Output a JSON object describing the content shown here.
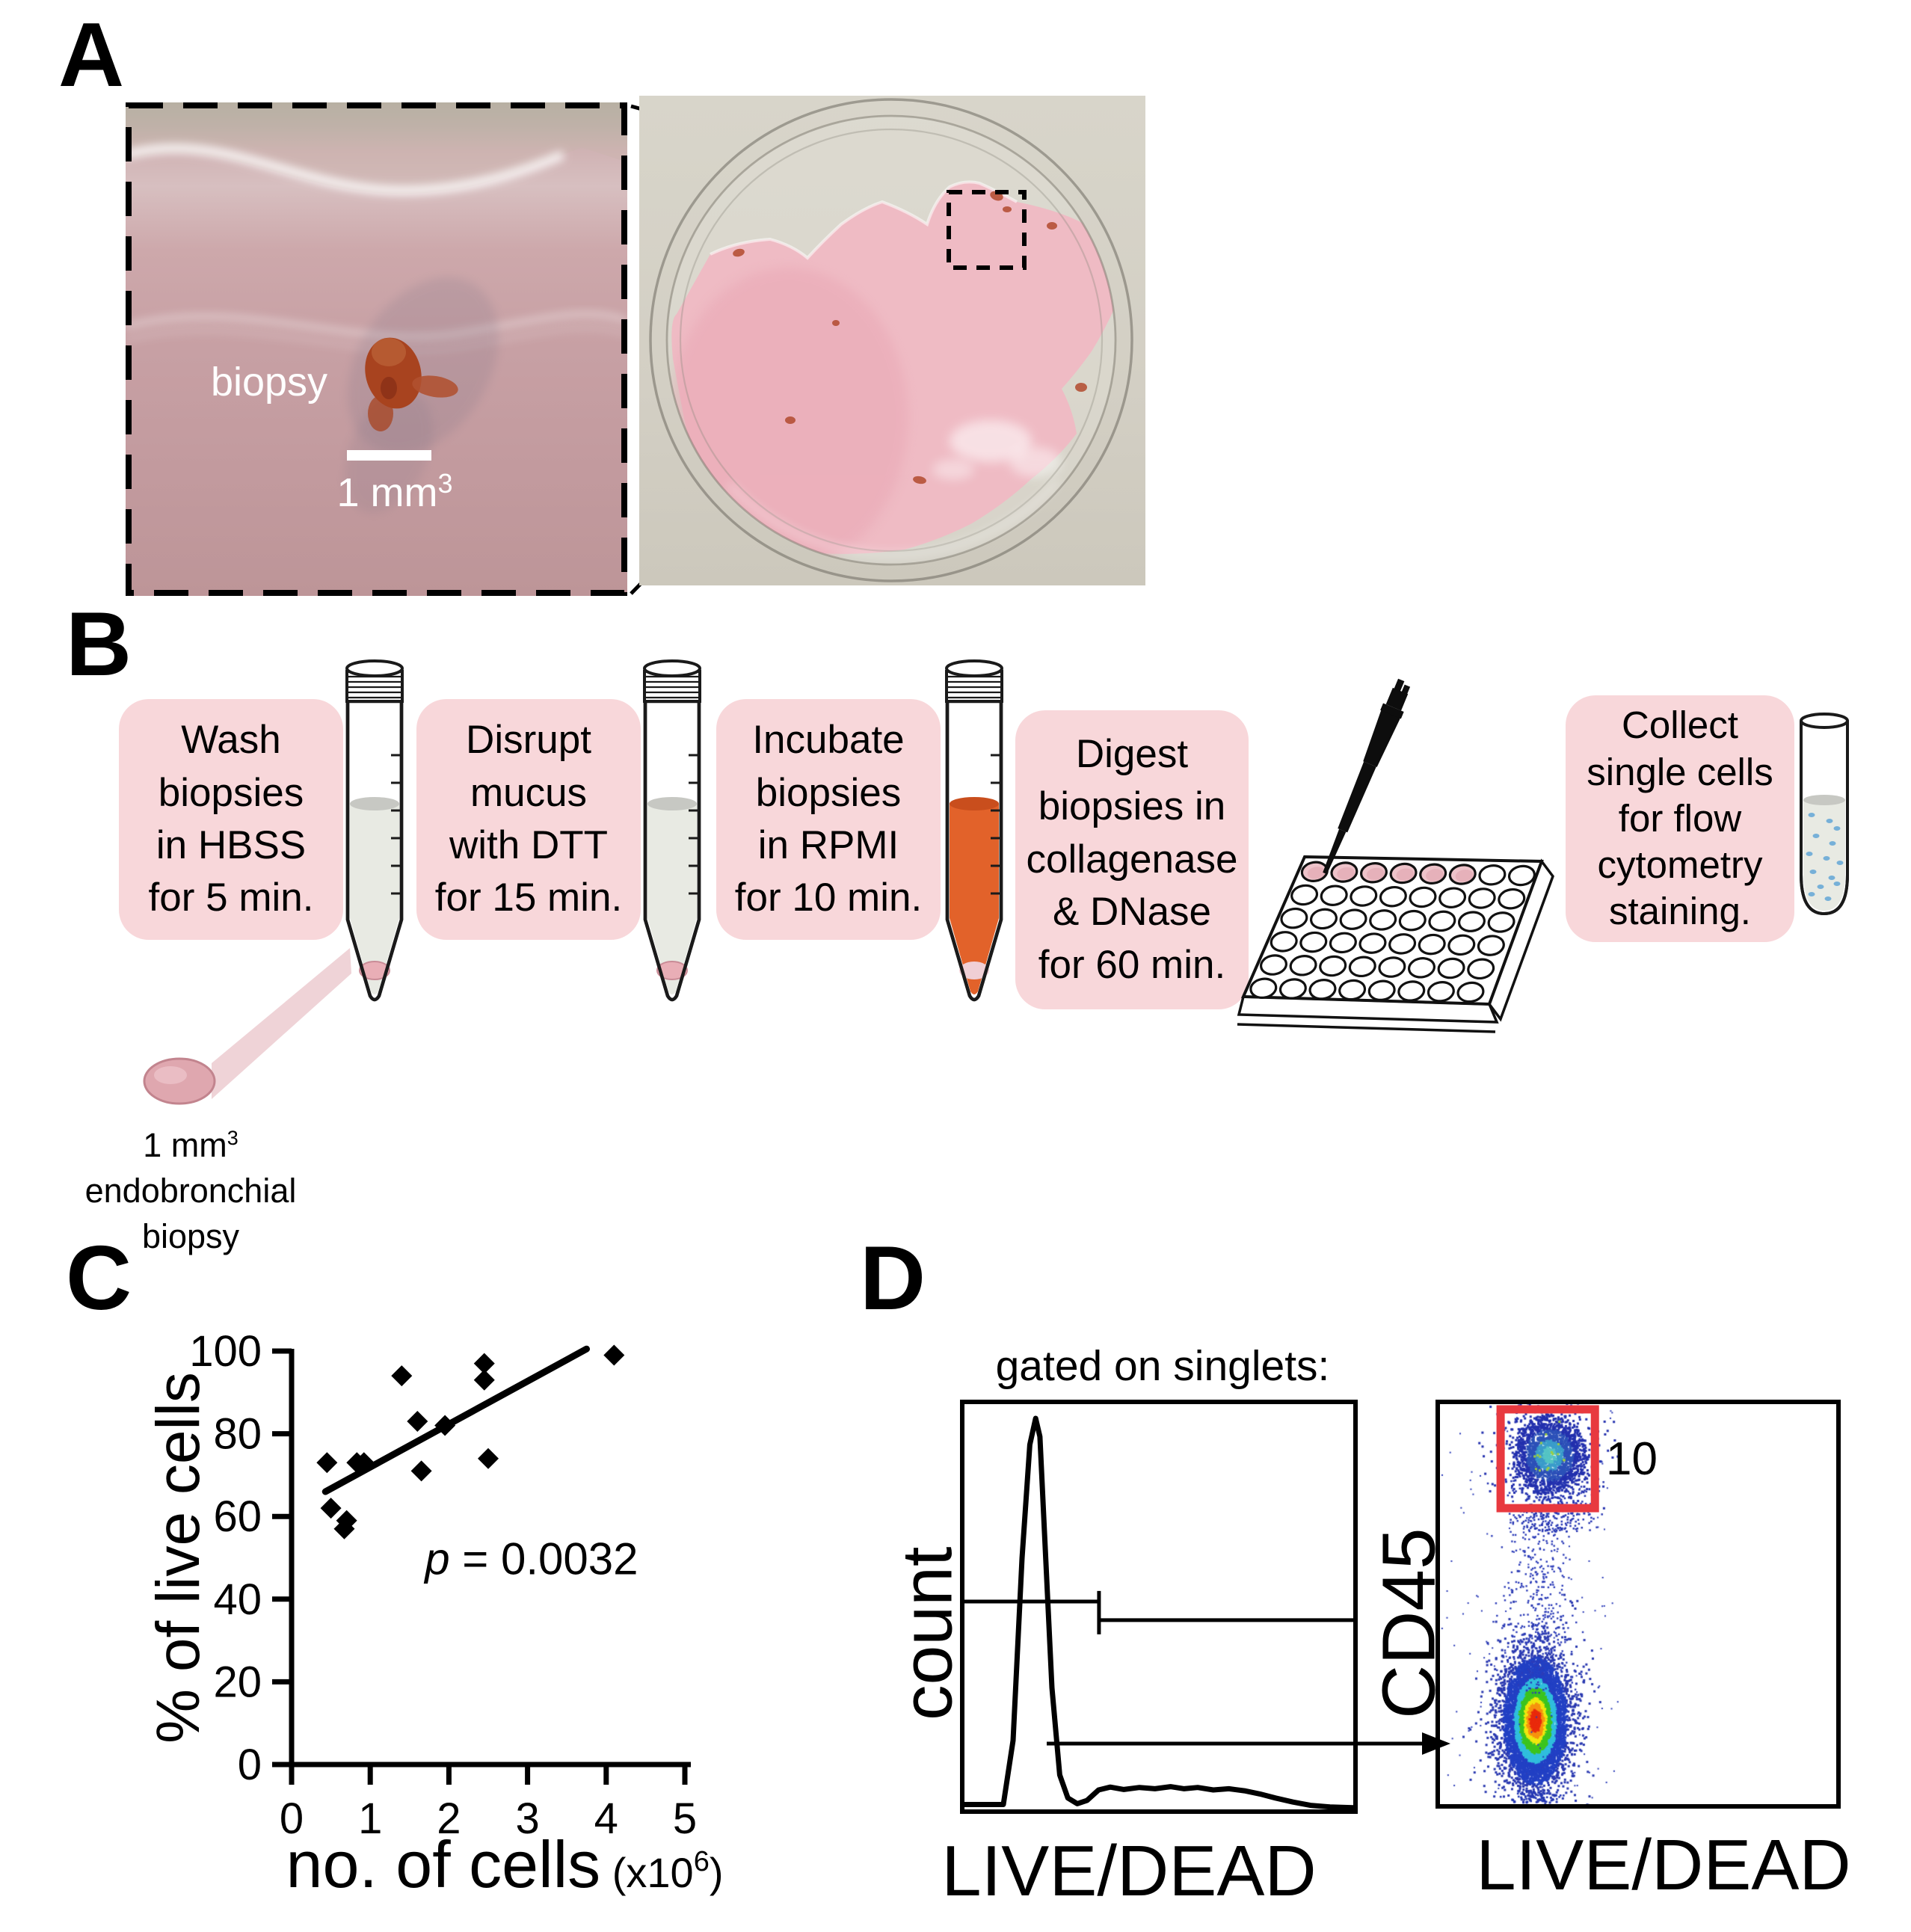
{
  "colors": {
    "box_pink": "#f8d7da",
    "gate_red": "#e8393f",
    "media_pink": "#f1b8c3",
    "tube_liquid": "#e8eae3",
    "meniscus_gray": "#c7c8c3",
    "rpmi_orange": "#e2622a",
    "rpmi_meniscus": "#c94e1d",
    "pellet_pink": "#e9aeb6",
    "well_pink": "#eec3ca",
    "cell_dot_blue": "#76b0d8"
  },
  "panel_a": {
    "label": "A",
    "inset": {
      "biopsy_label": "biopsy",
      "scale_base": "1 mm",
      "scale_exp": "3"
    }
  },
  "panel_b": {
    "label": "B",
    "steps": [
      {
        "lines": [
          "Wash",
          "biopsies",
          "in HBSS",
          "for 5 min."
        ]
      },
      {
        "lines": [
          "Disrupt",
          "mucus",
          "with DTT",
          "for 15 min."
        ]
      },
      {
        "lines": [
          "Incubate",
          "biopsies",
          "in RPMI",
          "for 10 min."
        ]
      },
      {
        "lines": [
          "Digest",
          "biopsies in",
          "collagenase",
          "& DNase",
          "for 60 min."
        ]
      },
      {
        "lines": [
          "Collect",
          "single cells",
          "for flow",
          "cytometry",
          "staining."
        ]
      }
    ],
    "caption": {
      "line1_base": "1 mm",
      "line1_exp": "3",
      "line2": "endobronchial",
      "line3": "biopsy"
    }
  },
  "panel_c": {
    "label": "C"
  },
  "panel_d": {
    "label": "D",
    "gated_label": "gated on singlets:"
  },
  "chart_data": [
    {
      "id": "live-cells-scatter",
      "type": "scatter",
      "title": "",
      "xlabel": "no. of cells",
      "xunit": {
        "base": " (x10",
        "exp": "6",
        "close": ")"
      },
      "ylabel": "% of live cells",
      "xlim": [
        0,
        5
      ],
      "ylim": [
        0,
        100
      ],
      "xticks": [
        0,
        1,
        2,
        3,
        4,
        5
      ],
      "yticks": [
        0,
        20,
        40,
        60,
        80,
        100
      ],
      "grid": false,
      "marker": "diamond",
      "points": [
        [
          0.45,
          73
        ],
        [
          0.5,
          62
        ],
        [
          0.67,
          57
        ],
        [
          0.7,
          59
        ],
        [
          0.83,
          73
        ],
        [
          0.92,
          73
        ],
        [
          1.4,
          94
        ],
        [
          1.6,
          83
        ],
        [
          1.65,
          71
        ],
        [
          1.95,
          82
        ],
        [
          2.45,
          93
        ],
        [
          2.45,
          97
        ],
        [
          2.5,
          74
        ],
        [
          4.1,
          99
        ]
      ],
      "trend": {
        "x1": 0.43,
        "y1": 66,
        "x2": 3.75,
        "y2": 100.5
      },
      "annotation": {
        "var": "p",
        "rest": " = 0.0032",
        "x": 3.05,
        "y": 46
      }
    },
    {
      "id": "livedead-histogram",
      "type": "area",
      "xlabel": "LIVE/DEAD",
      "ylabel": "count",
      "curve": [
        [
          0,
          0.012
        ],
        [
          0.1,
          0.012
        ],
        [
          0.125,
          0.17
        ],
        [
          0.148,
          0.62
        ],
        [
          0.168,
          0.9
        ],
        [
          0.183,
          0.965
        ],
        [
          0.194,
          0.92
        ],
        [
          0.206,
          0.68
        ],
        [
          0.225,
          0.3
        ],
        [
          0.245,
          0.085
        ],
        [
          0.266,
          0.028
        ],
        [
          0.29,
          0.014
        ],
        [
          0.315,
          0.022
        ],
        [
          0.345,
          0.048
        ],
        [
          0.375,
          0.055
        ],
        [
          0.41,
          0.049
        ],
        [
          0.45,
          0.054
        ],
        [
          0.49,
          0.051
        ],
        [
          0.53,
          0.056
        ],
        [
          0.565,
          0.051
        ],
        [
          0.6,
          0.054
        ],
        [
          0.64,
          0.048
        ],
        [
          0.68,
          0.051
        ],
        [
          0.72,
          0.046
        ],
        [
          0.76,
          0.038
        ],
        [
          0.8,
          0.028
        ],
        [
          0.845,
          0.018
        ],
        [
          0.89,
          0.01
        ],
        [
          0.94,
          0.006
        ],
        [
          1,
          0.004
        ]
      ],
      "gate": {
        "line1": {
          "y": 0.487,
          "x1": 0,
          "x2": 0.346
        },
        "tick": {
          "x": 0.346,
          "y1": 0.461,
          "y2": 0.568
        },
        "line2": {
          "y": 0.533,
          "x1": 0.346,
          "x2": 1.0
        },
        "arrow_y": 0.838
      }
    },
    {
      "id": "cd45-dotplot",
      "type": "scatter-density",
      "xlabel": "LIVE/DEAD",
      "ylabel": "CD45",
      "gate": {
        "label": "10",
        "x": 0.153,
        "y": 0.013,
        "w": 0.238,
        "h": 0.247
      },
      "clusters": [
        {
          "name": "CD45-positive",
          "cx": 0.274,
          "cy": 0.125,
          "sx": 0.057,
          "sy": 0.062,
          "n": 2600,
          "palette": "teal"
        },
        {
          "name": "CD45-negative",
          "cx": 0.238,
          "cy": 0.789,
          "sx": 0.049,
          "sy": 0.097,
          "n": 9000,
          "palette": "jet"
        }
      ],
      "bridge": {
        "cx": 0.248,
        "y1": 0.26,
        "y2": 0.72,
        "sx": 0.042,
        "n": 430
      },
      "strays_n": 140,
      "bottom_specks_n": 70
    }
  ]
}
